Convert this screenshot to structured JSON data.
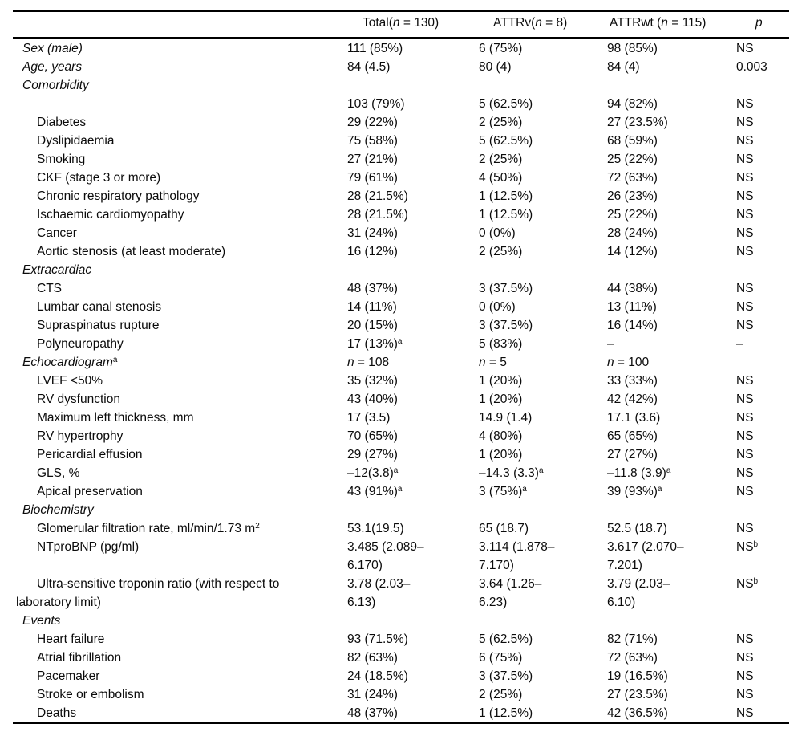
{
  "table": {
    "columns": [
      {
        "label": ""
      },
      {
        "label": "Total(*n* = 130)"
      },
      {
        "label": "ATTRv(*n* = 8)"
      },
      {
        "label": "ATTRwt (*n* = 115)"
      },
      {
        "label": "*p*"
      }
    ],
    "rows": [
      {
        "label": "Sex (male)",
        "style": "l0",
        "cells": [
          "111 (85%)",
          "6 (75%)",
          "98 (85%)",
          "NS"
        ]
      },
      {
        "label": "Age, years",
        "style": "l0",
        "cells": [
          "84 (4.5)",
          "80 (4)",
          "84 (4)",
          "0.003"
        ]
      },
      {
        "label": "Comorbidity",
        "style": "l0",
        "cells": [
          "",
          "",
          "",
          ""
        ]
      },
      {
        "label": "",
        "style": "l1",
        "cells": [
          "103 (79%)",
          "5 (62.5%)",
          "94 (82%)",
          "NS"
        ]
      },
      {
        "label": "Diabetes",
        "style": "l1",
        "cells": [
          "29 (22%)",
          "2 (25%)",
          "27 (23.5%)",
          "NS"
        ]
      },
      {
        "label": "Dyslipidaemia",
        "style": "l1",
        "cells": [
          "75 (58%)",
          "5 (62.5%)",
          "68 (59%)",
          "NS"
        ]
      },
      {
        "label": "Smoking",
        "style": "l1",
        "cells": [
          "27 (21%)",
          "2 (25%)",
          "25 (22%)",
          "NS"
        ]
      },
      {
        "label": "CKF (stage 3 or more)",
        "style": "l1",
        "cells": [
          "79 (61%)",
          "4 (50%)",
          "72 (63%)",
          "NS"
        ]
      },
      {
        "label": "Chronic respiratory pathology",
        "style": "l1",
        "cells": [
          "28 (21.5%)",
          "1 (12.5%)",
          "26 (23%)",
          "NS"
        ]
      },
      {
        "label": "Ischaemic cardiomyopathy",
        "style": "l1",
        "cells": [
          "28 (21.5%)",
          "1 (12.5%)",
          "25 (22%)",
          "NS"
        ]
      },
      {
        "label": "Cancer",
        "style": "l1",
        "cells": [
          "31 (24%)",
          "0 (0%)",
          "28 (24%)",
          "NS"
        ]
      },
      {
        "label": "Aortic stenosis (at least moderate)",
        "style": "l1",
        "cells": [
          "16 (12%)",
          "2 (25%)",
          "14 (12%)",
          "NS"
        ]
      },
      {
        "label": "Extracardiac",
        "style": "l0",
        "cells": [
          "",
          "",
          "",
          ""
        ]
      },
      {
        "label": "CTS",
        "style": "l1",
        "cells": [
          "48 (37%)",
          "3 (37.5%)",
          "44 (38%)",
          "NS"
        ]
      },
      {
        "label": "Lumbar canal stenosis",
        "style": "l1",
        "cells": [
          "14 (11%)",
          "0 (0%)",
          "13 (11%)",
          "NS"
        ]
      },
      {
        "label": "Supraspinatus rupture",
        "style": "l1",
        "cells": [
          "20 (15%)",
          "3 (37.5%)",
          "16 (14%)",
          "NS"
        ]
      },
      {
        "label": "Polyneuropathy",
        "style": "l1",
        "cells": [
          "17 (13%)^{a}",
          "5 (83%)",
          "–",
          "–"
        ]
      },
      {
        "label": "Echocardiogram^{a}",
        "style": "l0",
        "cells": [
          "*n* = 108",
          "*n* = 5",
          "*n* = 100",
          ""
        ]
      },
      {
        "label": "LVEF <50%",
        "style": "l1",
        "cells": [
          "35 (32%)",
          "1 (20%)",
          "33 (33%)",
          "NS"
        ]
      },
      {
        "label": "RV dysfunction",
        "style": "l1",
        "cells": [
          "43 (40%)",
          "1 (20%)",
          "42 (42%)",
          "NS"
        ]
      },
      {
        "label": "Maximum left thickness, mm",
        "style": "l1",
        "cells": [
          "17 (3.5)",
          "14.9 (1.4)",
          "17.1 (3.6)",
          "NS"
        ]
      },
      {
        "label": "RV hypertrophy",
        "style": "l1",
        "cells": [
          "70 (65%)",
          "4 (80%)",
          "65 (65%)",
          "NS"
        ]
      },
      {
        "label": "Pericardial effusion",
        "style": "l1",
        "cells": [
          "29 (27%)",
          "1 (20%)",
          "27 (27%)",
          "NS"
        ]
      },
      {
        "label": "GLS, %",
        "style": "l1",
        "cells": [
          "–12(3.8)^{a}",
          "–14.3 (3.3)^{a}",
          "–11.8 (3.9)^{a}",
          "NS"
        ]
      },
      {
        "label": "Apical preservation",
        "style": "l1",
        "cells": [
          "43 (91%)^{a}",
          "3 (75%)^{a}",
          "39 (93%)^{a}",
          "NS"
        ]
      },
      {
        "label": "Biochemistry",
        "style": "l0",
        "cells": [
          "",
          "",
          "",
          ""
        ]
      },
      {
        "label": "Glomerular filtration rate, ml/min/1.73 m^{2}",
        "style": "l1",
        "cells": [
          "53.1(19.5)",
          "65 (18.7)",
          "52.5 (18.7)",
          "NS"
        ]
      },
      {
        "label": "NTproBNP (pg/ml)",
        "style": "l1",
        "cells": [
          "3.485 (2.089–\n6.170)",
          "3.114 (1.878–\n7.170)",
          "3.617 (2.070–\n7.201)",
          "NS^{b}"
        ]
      },
      {
        "label": "Ultra-sensitive troponin ratio (with respect to\nlaboratory limit)",
        "style": "hang",
        "cells": [
          "3.78 (2.03–\n6.13)",
          "3.64 (1.26–\n6.23)",
          "3.79 (2.03–\n6.10)",
          "NS^{b}"
        ]
      },
      {
        "label": "Events",
        "style": "l0",
        "cells": [
          "",
          "",
          "",
          ""
        ]
      },
      {
        "label": "Heart failure",
        "style": "l1",
        "cells": [
          "93 (71.5%)",
          "5 (62.5%)",
          "82 (71%)",
          "NS"
        ]
      },
      {
        "label": "Atrial fibrillation",
        "style": "l1",
        "cells": [
          "82 (63%)",
          "6 (75%)",
          "72 (63%)",
          "NS"
        ]
      },
      {
        "label": "Pacemaker",
        "style": "l1",
        "cells": [
          "24 (18.5%)",
          "3 (37.5%)",
          "19 (16.5%)",
          "NS"
        ]
      },
      {
        "label": "Stroke or embolism",
        "style": "l1",
        "cells": [
          "31 (24%)",
          "2 (25%)",
          "27 (23.5%)",
          "NS"
        ]
      },
      {
        "label": "Deaths",
        "style": "l1",
        "cells": [
          "48 (37%)",
          "1 (12.5%)",
          "42 (36.5%)",
          "NS"
        ]
      }
    ]
  }
}
